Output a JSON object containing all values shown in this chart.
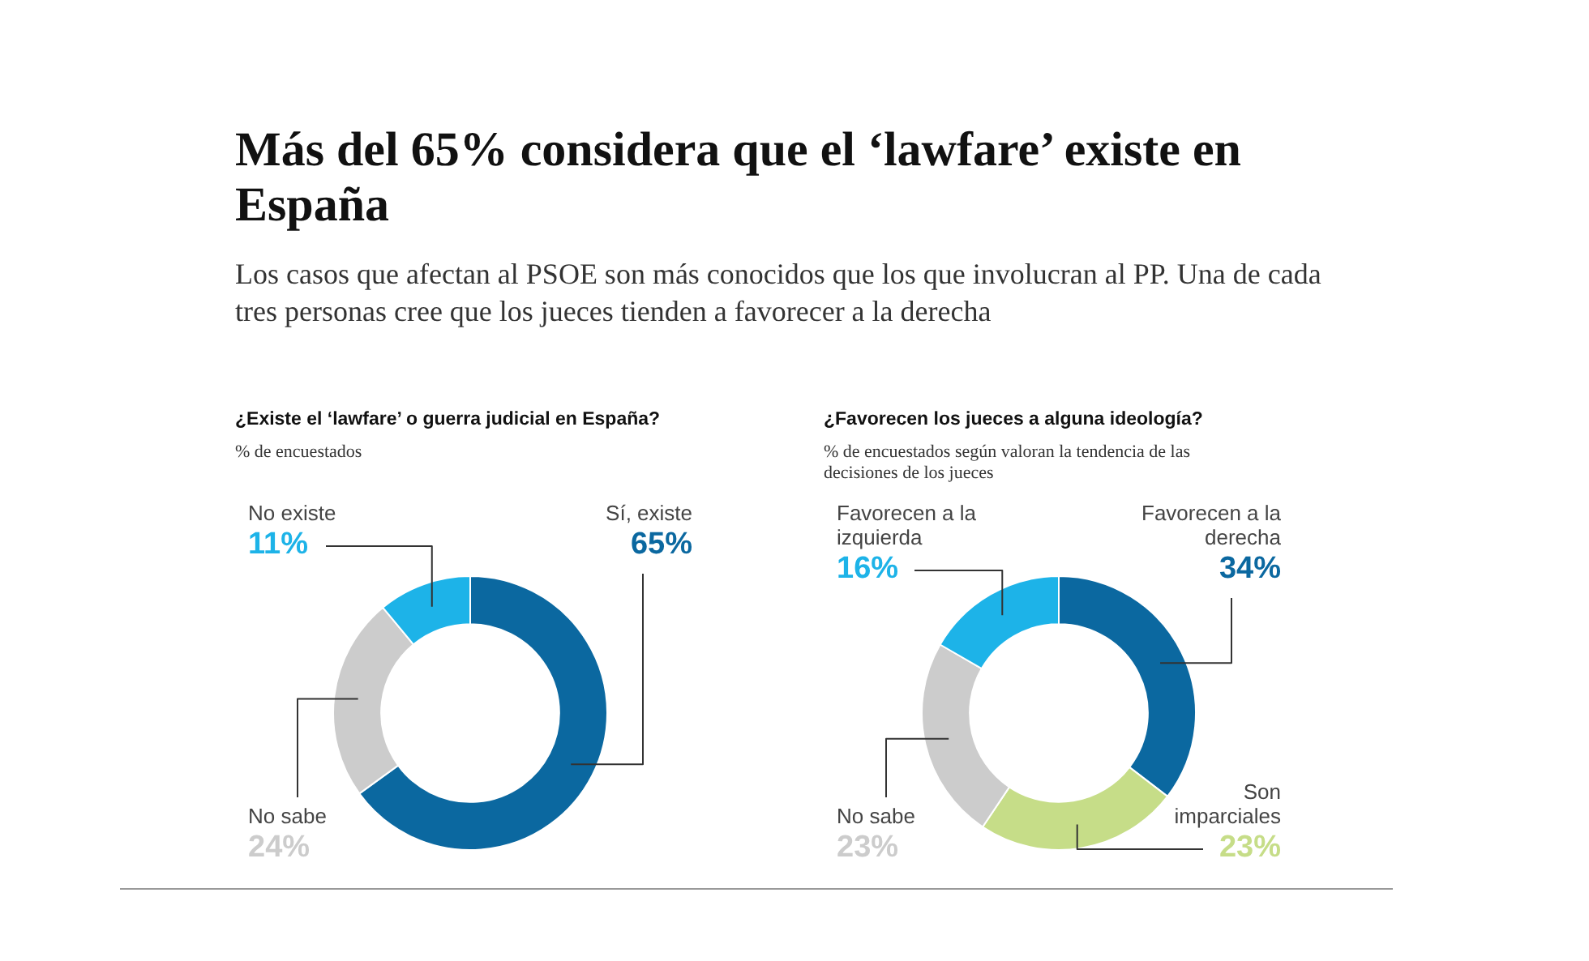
{
  "chart_data": [
    {
      "type": "other",
      "title": "Más del 65% considera que el ‘lawfare’ existe en España",
      "subtitle": "Los casos que afectan al PSOE son más conocidos que los que involucran al PP. Una de cada tres personas cree que los jueces tienden a favorecer a la derecha"
    },
    {
      "type": "donut",
      "title": "¿Existe el ‘lawfare’ o guerra judicial en España?",
      "subtitle": "% de encuestados",
      "categories": [
        "Sí, existe",
        "No sabe",
        "No existe"
      ],
      "values": [
        65,
        24,
        11
      ],
      "value_labels": [
        "65%",
        "24%",
        "11%"
      ],
      "colors": [
        "#0b68a0",
        "#cccccc",
        "#1db3e8"
      ],
      "legend": false
    },
    {
      "type": "donut",
      "title": "¿Favorecen los jueces a alguna ideología?",
      "subtitle": "% de encuestados según valoran la tendencia de las decisiones de los jueces",
      "categories": [
        "Favorecen a la derecha",
        "Son imparciales",
        "No sabe",
        "Favorecen a la izquierda"
      ],
      "values": [
        34,
        23,
        23,
        16
      ],
      "value_labels": [
        "34%",
        "23%",
        "23%",
        "16%"
      ],
      "colors": [
        "#0b68a0",
        "#c6dd88",
        "#cccccc",
        "#1db3e8"
      ],
      "legend": false
    }
  ]
}
